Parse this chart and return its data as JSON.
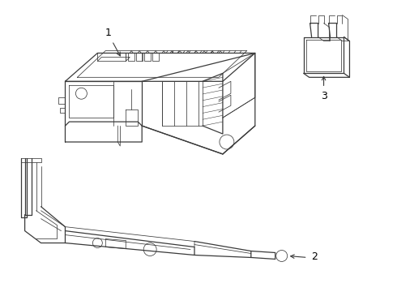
{
  "background_color": "#ffffff",
  "line_color": "#3a3a3a",
  "label_color": "#000000",
  "figsize": [
    4.9,
    3.6
  ],
  "dpi": 100
}
